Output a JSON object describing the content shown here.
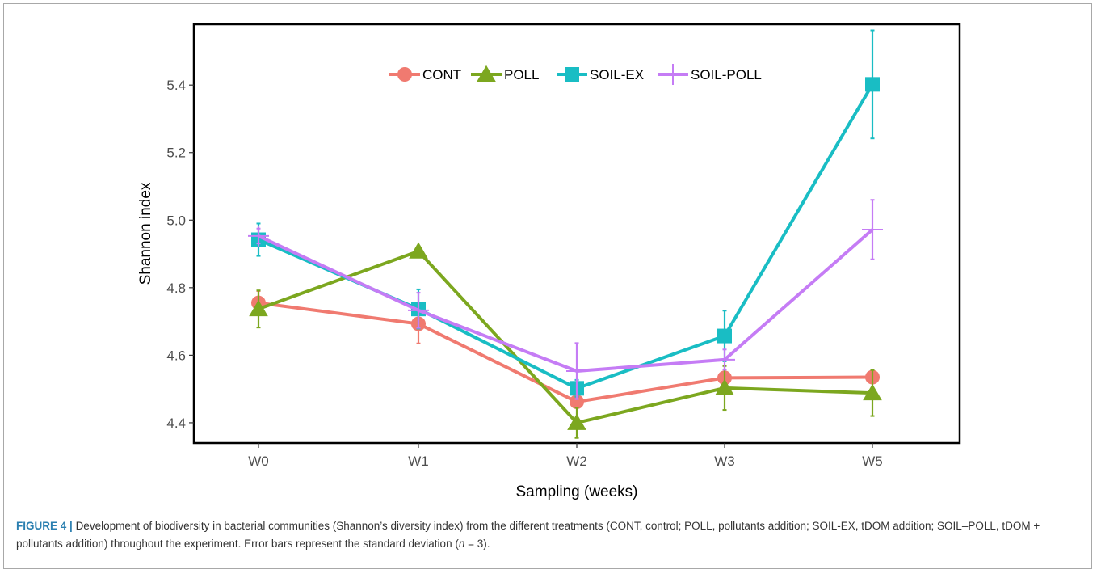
{
  "chart_data": {
    "type": "line",
    "xlabel": "Sampling (weeks)",
    "ylabel": "Shannon index",
    "categories": [
      "W0",
      "W1",
      "W2",
      "W3",
      "W5"
    ],
    "ylim": [
      4.34,
      5.58
    ],
    "yticks": [
      "4.4",
      "4.6",
      "4.8",
      "5.0",
      "5.2",
      "5.4"
    ],
    "grid": false,
    "legend_position": "top",
    "series": [
      {
        "name": "CONT",
        "color": "#f07a70",
        "marker": "circle",
        "values": [
          4.755,
          4.693,
          4.462,
          4.533,
          4.535
        ],
        "errors": [
          0.035,
          0.058,
          0.01,
          0.008,
          0.015
        ]
      },
      {
        "name": "POLL",
        "color": "#7ca71f",
        "marker": "triangle",
        "values": [
          4.737,
          4.908,
          4.4,
          4.503,
          4.488
        ],
        "errors": [
          0.055,
          0.015,
          0.045,
          0.065,
          0.068
        ]
      },
      {
        "name": "SOIL-EX",
        "color": "#19bdc4",
        "marker": "square",
        "values": [
          4.942,
          4.737,
          4.502,
          4.657,
          5.402
        ],
        "errors": [
          0.048,
          0.058,
          0.025,
          0.075,
          0.16
        ]
      },
      {
        "name": "SOIL-POLL",
        "color": "#c57cf5",
        "marker": "cross",
        "values": [
          4.953,
          4.733,
          4.553,
          4.587,
          4.972
        ],
        "errors": [
          0.022,
          0.052,
          0.083,
          0.03,
          0.088
        ]
      }
    ]
  },
  "caption": {
    "label": "FIGURE 4 |",
    "text": "Development of biodiversity in bacterial communities (Shannon’s diversity index) from the different treatments (CONT, control; POLL, pollutants addition; SOIL-EX, tDOM addition; SOIL–POLL, tDOM + pollutants addition) throughout the experiment. Error bars represent the standard deviation (",
    "n_symbol": "n",
    "text_end": " = 3)."
  }
}
